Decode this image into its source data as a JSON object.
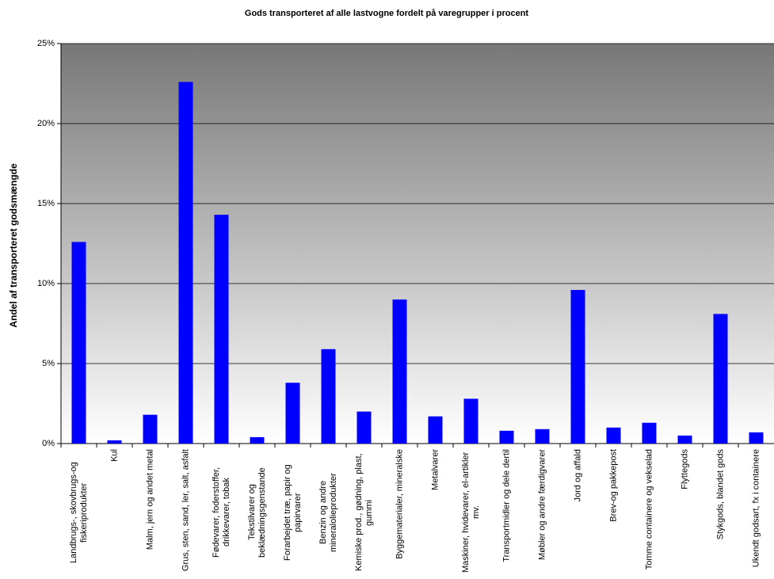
{
  "chart_data": {
    "type": "bar",
    "title": "Gods transporteret af alle lastvogne fordelt på varegrupper i procent",
    "y_label": "Andel af transporteret godsmængde",
    "categories": [
      "Landbrugs-, skovbrugs-og fiskeriprodukter",
      "Kul",
      "Malm, jern og andet metal",
      "Grus, sten, sand, ler, salt, asfalt",
      "Fødevarer, foderstoffer, drikkevarer, tobak",
      "Tekstilvarer og beklædningsgenstande",
      "Forarbejdet træ, papir og papirvarer",
      "Benzin og andre mineralolieprodukter",
      "Kemiske prod., gødning, plast, gummi",
      "Byggematerialer, mineralske",
      "Metalvarer",
      "Maskiner, hvidevarer, el-artikler mv.",
      "Transportmidler og dele dertil",
      "Møbler og andre færdigvarer",
      "Jord og affald",
      "Brev-og pakkepost",
      "Tomme containere og vekselad",
      "Flyttegods",
      "Stykgods, blandet gods",
      "Ukendt godsart, fx i containere"
    ],
    "values": [
      12.6,
      0.2,
      1.8,
      22.6,
      14.3,
      0.4,
      3.8,
      5.9,
      2.0,
      9.0,
      1.7,
      2.8,
      0.8,
      0.9,
      9.6,
      1.0,
      1.3,
      0.5,
      8.1,
      0.7
    ],
    "color": "#0000ff",
    "ylim": [
      0,
      25
    ],
    "yticks": [
      {
        "value": 0,
        "label": "0%"
      },
      {
        "value": 5,
        "label": "5%"
      },
      {
        "value": 10,
        "label": "10%"
      },
      {
        "value": 15,
        "label": "15%"
      },
      {
        "value": 20,
        "label": "20%"
      },
      {
        "value": 25,
        "label": "25%"
      }
    ],
    "grid": true
  }
}
